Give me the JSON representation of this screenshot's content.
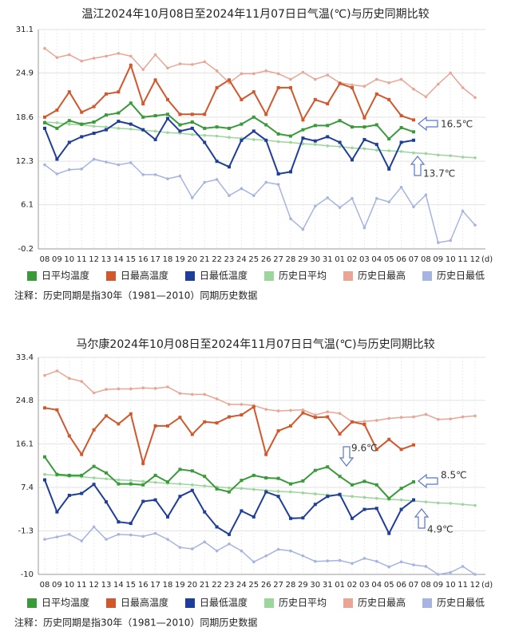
{
  "chart_data": [
    {
      "type": "line",
      "title": "温江2024年10月08日至2024年11月07日日气温(℃)与历史同期比较",
      "note": "注释：历史同期是指30年（1981—2010）同期历史数据",
      "x_unit": "(d)",
      "categories": [
        "08",
        "09",
        "10",
        "11",
        "12",
        "13",
        "14",
        "15",
        "16",
        "17",
        "18",
        "19",
        "20",
        "21",
        "22",
        "23",
        "24",
        "25",
        "26",
        "27",
        "28",
        "29",
        "30",
        "31",
        "01",
        "02",
        "03",
        "04",
        "05",
        "06",
        "07",
        "08",
        "09",
        "10",
        "11",
        "12"
      ],
      "ylim": [
        -0.2,
        31.1
      ],
      "yticks": [
        -0.2,
        6.1,
        12.3,
        18.6,
        24.9,
        31.1
      ],
      "grid": true,
      "annotations": [
        "16.5℃",
        "13.7℃"
      ],
      "series": [
        {
          "name": "日平均温度",
          "color": "#3a9a3a",
          "values": [
            17.8,
            17.0,
            18.1,
            17.6,
            17.9,
            18.9,
            19.2,
            20.6,
            18.6,
            18.8,
            19.0,
            17.5,
            17.9,
            17.0,
            17.2,
            17.0,
            17.6,
            18.6,
            17.5,
            16.2,
            15.9,
            16.8,
            17.4,
            17.4,
            18.1,
            17.2,
            17.2,
            17.5,
            15.5,
            17.1,
            16.5,
            null,
            null,
            null,
            null,
            null
          ]
        },
        {
          "name": "日最高温度",
          "color": "#d0582c",
          "values": [
            18.6,
            19.6,
            22.2,
            19.3,
            20.1,
            21.9,
            22.2,
            26.0,
            20.5,
            23.9,
            21.1,
            19.0,
            19.0,
            19.0,
            22.8,
            23.9,
            21.1,
            22.2,
            19.0,
            22.8,
            22.8,
            18.2,
            21.1,
            20.5,
            23.4,
            22.8,
            18.5,
            21.9,
            21.1,
            18.8,
            18.2,
            null,
            null,
            null,
            null,
            null
          ]
        },
        {
          "name": "日最低温度",
          "color": "#1f3e98",
          "values": [
            17.0,
            12.6,
            15.0,
            15.8,
            16.3,
            16.8,
            18.0,
            17.6,
            16.8,
            15.4,
            18.4,
            16.6,
            17.0,
            15.0,
            12.3,
            11.5,
            15.3,
            16.6,
            15.3,
            10.5,
            10.8,
            15.6,
            15.2,
            15.8,
            15.0,
            12.5,
            15.4,
            14.7,
            11.2,
            15.0,
            15.3,
            null,
            null,
            null,
            null,
            null
          ]
        },
        {
          "name": "历史日平均",
          "color": "#9cd69c",
          "values": [
            17.9,
            17.8,
            17.6,
            17.5,
            17.3,
            17.2,
            17.0,
            16.9,
            16.7,
            16.6,
            16.4,
            16.3,
            16.1,
            16.0,
            15.9,
            15.7,
            15.6,
            15.4,
            15.3,
            15.1,
            15.0,
            14.8,
            14.7,
            14.5,
            14.4,
            14.2,
            14.1,
            13.9,
            13.8,
            13.7,
            13.5,
            13.4,
            13.2,
            13.1,
            12.9,
            12.8
          ]
        },
        {
          "name": "历史日最高",
          "color": "#e9a596",
          "values": [
            28.4,
            27.1,
            27.5,
            26.6,
            27.0,
            27.3,
            27.7,
            27.3,
            25.4,
            27.5,
            25.6,
            26.2,
            26.1,
            26.5,
            25.2,
            23.5,
            24.8,
            24.8,
            25.2,
            24.8,
            24.0,
            25.0,
            24.0,
            24.6,
            23.5,
            23.2,
            23.0,
            24.0,
            23.5,
            24.0,
            22.6,
            21.5,
            23.3,
            24.9,
            22.8,
            21.4
          ]
        },
        {
          "name": "历史日最低",
          "color": "#a6b4e2",
          "values": [
            11.8,
            10.5,
            11.1,
            11.2,
            12.6,
            12.2,
            11.8,
            12.1,
            10.4,
            10.4,
            9.8,
            10.2,
            7.1,
            9.3,
            9.7,
            7.4,
            8.4,
            7.4,
            9.3,
            9.0,
            4.1,
            2.6,
            5.9,
            7.1,
            5.7,
            7.0,
            2.8,
            7.0,
            6.5,
            8.6,
            5.8,
            7.5,
            0.7,
            1.0,
            5.2,
            3.2
          ]
        }
      ]
    },
    {
      "type": "line",
      "title": "马尔康2024年10月08日至2024年11月07日日气温(℃)与历史同期比较",
      "note": "注释：历史同期是指30年（1981—2010）同期历史数据",
      "x_unit": "(d)",
      "categories": [
        "08",
        "09",
        "10",
        "11",
        "12",
        "13",
        "14",
        "15",
        "16",
        "17",
        "18",
        "19",
        "20",
        "21",
        "22",
        "23",
        "24",
        "25",
        "26",
        "27",
        "28",
        "29",
        "30",
        "31",
        "01",
        "02",
        "03",
        "04",
        "05",
        "06",
        "07",
        "08",
        "09",
        "10",
        "11",
        "12"
      ],
      "ylim": [
        -10.0,
        33.4
      ],
      "yticks": [
        -10.0,
        -1.3,
        7.4,
        16.1,
        24.8,
        33.4
      ],
      "grid": true,
      "annotations": [
        "9.6℃",
        "8.5℃",
        "4.9℃"
      ],
      "series": [
        {
          "name": "日平均温度",
          "color": "#3a9a3a",
          "values": [
            13.5,
            10.0,
            9.8,
            9.8,
            11.6,
            10.3,
            8.1,
            8.1,
            7.9,
            9.8,
            8.5,
            11.0,
            10.7,
            9.6,
            7.1,
            6.5,
            8.8,
            9.8,
            9.3,
            9.2,
            8.1,
            8.7,
            10.8,
            11.5,
            9.6,
            7.9,
            8.6,
            7.9,
            5.2,
            7.2,
            8.5,
            null,
            null,
            null,
            null,
            null
          ]
        },
        {
          "name": "日最高温度",
          "color": "#d0582c",
          "values": [
            23.3,
            22.9,
            17.7,
            14.0,
            18.9,
            21.7,
            20.1,
            22.1,
            12.2,
            19.7,
            19.7,
            21.4,
            18.0,
            20.5,
            20.3,
            21.5,
            21.9,
            23.5,
            14.0,
            18.7,
            19.7,
            22.3,
            21.4,
            21.5,
            18.1,
            20.5,
            20.0,
            15.0,
            17.0,
            15.0,
            15.9,
            null,
            null,
            null,
            null,
            null
          ]
        },
        {
          "name": "日最低温度",
          "color": "#1f3e98",
          "values": [
            8.9,
            2.5,
            5.8,
            6.2,
            8.0,
            4.5,
            0.5,
            0.2,
            4.6,
            4.9,
            1.5,
            5.6,
            6.8,
            2.5,
            -0.5,
            -2.0,
            2.7,
            1.5,
            6.5,
            5.6,
            1.2,
            1.3,
            4.0,
            5.6,
            6.0,
            1.2,
            3.0,
            3.2,
            -1.8,
            3.0,
            4.9,
            null,
            null,
            null,
            null,
            null
          ]
        },
        {
          "name": "历史日平均",
          "color": "#9cd69c",
          "values": [
            10.0,
            9.8,
            9.6,
            9.5,
            9.3,
            9.1,
            8.9,
            8.8,
            8.6,
            8.4,
            8.2,
            8.1,
            7.9,
            7.7,
            7.5,
            7.3,
            7.2,
            7.0,
            6.8,
            6.6,
            6.5,
            6.3,
            6.1,
            5.9,
            5.8,
            5.6,
            5.4,
            5.2,
            5.0,
            4.9,
            4.7,
            4.5,
            4.3,
            4.2,
            4.0,
            3.8
          ]
        },
        {
          "name": "历史日最高",
          "color": "#e9a596",
          "values": [
            29.8,
            30.7,
            29.2,
            28.6,
            26.3,
            27.0,
            27.1,
            27.1,
            27.3,
            27.2,
            27.5,
            26.2,
            26.0,
            26.0,
            25.1,
            24.0,
            24.0,
            23.8,
            23.0,
            22.7,
            22.8,
            22.9,
            21.9,
            22.5,
            22.2,
            20.5,
            20.6,
            20.8,
            21.2,
            21.4,
            21.5,
            22.0,
            21.0,
            21.1,
            21.5,
            21.7
          ]
        },
        {
          "name": "历史日最低",
          "color": "#a6b4e2",
          "values": [
            -3.0,
            -2.5,
            -2.0,
            -3.3,
            -0.5,
            -3.0,
            -2.0,
            -2.1,
            -2.4,
            -1.8,
            -3.0,
            -4.6,
            -4.9,
            -3.5,
            -5.3,
            -3.9,
            -5.3,
            -7.5,
            -6.3,
            -5.0,
            -5.3,
            -6.3,
            -7.4,
            -7.3,
            -7.2,
            -7.8,
            -6.8,
            -7.4,
            -8.5,
            -7.5,
            -8.1,
            -8.4,
            -10.0,
            -9.6,
            -8.4,
            -10.0
          ]
        }
      ]
    }
  ]
}
